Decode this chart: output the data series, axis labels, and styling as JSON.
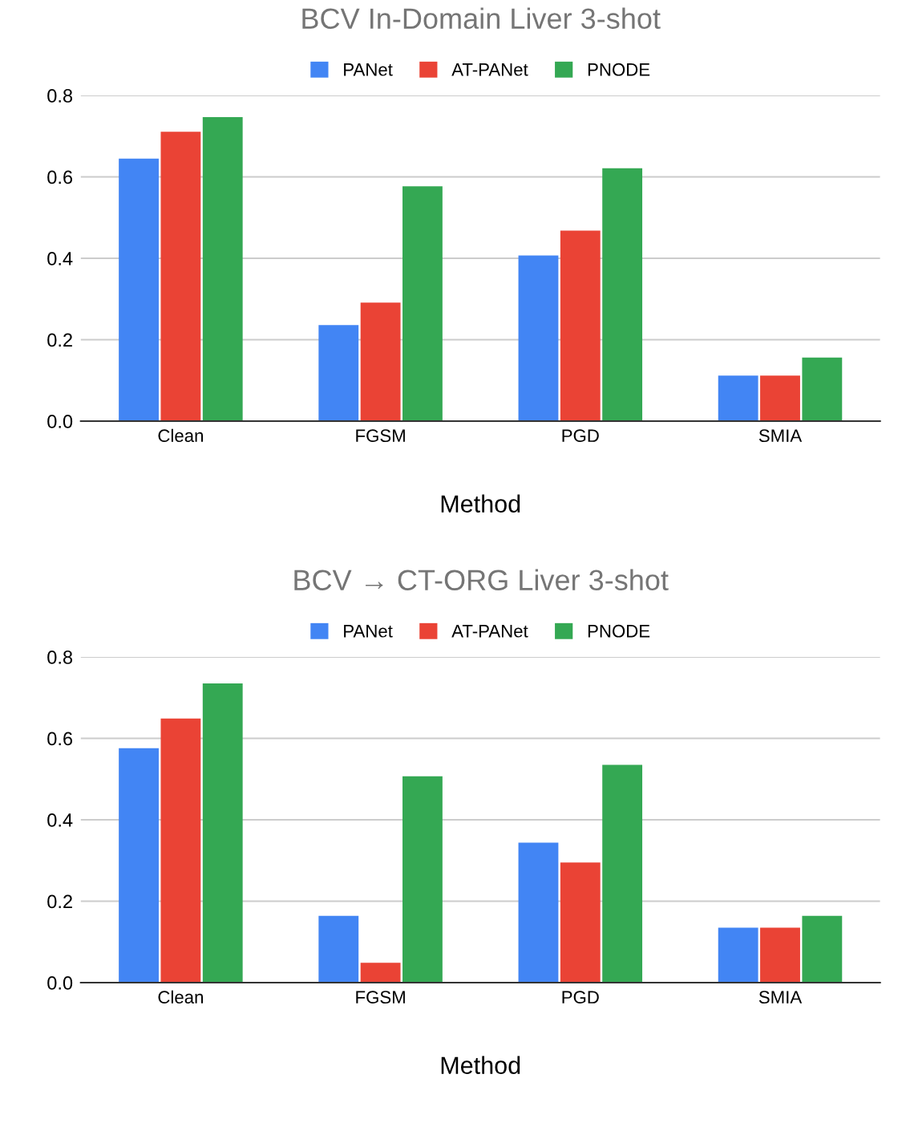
{
  "chart_data": [
    {
      "type": "bar",
      "title": "BCV In-Domain Liver 3-shot",
      "xlabel": "Method",
      "categories": [
        "Clean",
        "FGSM",
        "PGD",
        "SMIA"
      ],
      "series": [
        {
          "name": "PANet",
          "color": "#4285f4",
          "values": [
            0.645,
            0.236,
            0.407,
            0.112
          ]
        },
        {
          "name": "AT-PANet",
          "color": "#ea4335",
          "values": [
            0.711,
            0.291,
            0.468,
            0.112
          ]
        },
        {
          "name": "PNODE",
          "color": "#34a853",
          "values": [
            0.747,
            0.577,
            0.621,
            0.156
          ]
        }
      ],
      "ylim": [
        0,
        0.8
      ],
      "yticks": [
        {
          "value": 0,
          "label": "0.0"
        },
        0.2,
        0.4,
        0.6,
        0.8
      ],
      "grid": "y",
      "legend": "top"
    },
    {
      "type": "bar",
      "title": "BCV → CT-ORG Liver 3-shot",
      "xlabel": "Method",
      "categories": [
        "Clean",
        "FGSM",
        "PGD",
        "SMIA"
      ],
      "series": [
        {
          "name": "PANet",
          "color": "#4285f4",
          "values": [
            0.576,
            0.164,
            0.344,
            0.135
          ]
        },
        {
          "name": "AT-PANet",
          "color": "#ea4335",
          "values": [
            0.649,
            0.049,
            0.295,
            0.135
          ]
        },
        {
          "name": "PNODE",
          "color": "#34a853",
          "values": [
            0.735,
            0.507,
            0.535,
            0.164
          ]
        }
      ],
      "ylim": [
        0,
        0.8
      ],
      "yticks": [
        {
          "value": 0,
          "label": "0.0"
        },
        0.2,
        0.4,
        0.6,
        0.8
      ],
      "grid": "y",
      "legend": "top"
    }
  ]
}
